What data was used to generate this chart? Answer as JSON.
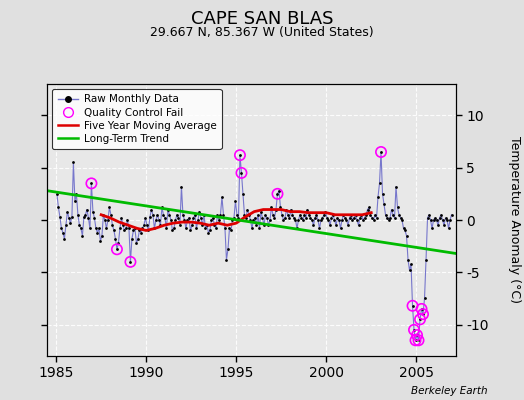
{
  "title": "CAPE SAN BLAS",
  "subtitle": "29.667 N, 85.367 W (United States)",
  "ylabel": "Temperature Anomaly (°C)",
  "credit": "Berkeley Earth",
  "xlim": [
    1984.5,
    2007.2
  ],
  "ylim": [
    -13,
    13
  ],
  "yticks": [
    -10,
    -5,
    0,
    5,
    10
  ],
  "xticks": [
    1985,
    1990,
    1995,
    2000,
    2005
  ],
  "bg_color": "#e0e0e0",
  "plot_bg_color": "#e8e8e8",
  "raw_line_color": "#7777cc",
  "dot_color": "#000000",
  "ma_color": "#dd0000",
  "trend_color": "#00bb00",
  "qc_color": "#ff00ff",
  "grid_color": "#ffffff",
  "raw_monthly": [
    [
      1985.042,
      2.5
    ],
    [
      1985.125,
      1.2
    ],
    [
      1985.208,
      0.3
    ],
    [
      1985.292,
      -0.8
    ],
    [
      1985.375,
      -1.2
    ],
    [
      1985.458,
      -1.8
    ],
    [
      1985.542,
      -0.5
    ],
    [
      1985.625,
      0.8
    ],
    [
      1985.708,
      0.2
    ],
    [
      1985.792,
      -0.3
    ],
    [
      1985.875,
      0.3
    ],
    [
      1985.958,
      5.5
    ],
    [
      1986.042,
      1.8
    ],
    [
      1986.125,
      2.5
    ],
    [
      1986.208,
      0.5
    ],
    [
      1986.292,
      -0.5
    ],
    [
      1986.375,
      -0.8
    ],
    [
      1986.458,
      -1.5
    ],
    [
      1986.542,
      0.3
    ],
    [
      1986.625,
      0.5
    ],
    [
      1986.708,
      1.0
    ],
    [
      1986.792,
      0.2
    ],
    [
      1986.875,
      -0.8
    ],
    [
      1986.958,
      3.5
    ],
    [
      1987.042,
      0.8
    ],
    [
      1987.125,
      0.2
    ],
    [
      1987.208,
      -0.8
    ],
    [
      1987.292,
      -1.2
    ],
    [
      1987.375,
      -0.8
    ],
    [
      1987.458,
      -2.0
    ],
    [
      1987.542,
      -1.5
    ],
    [
      1987.625,
      0.5
    ],
    [
      1987.708,
      0.0
    ],
    [
      1987.792,
      -0.8
    ],
    [
      1987.875,
      0.0
    ],
    [
      1987.958,
      1.2
    ],
    [
      1988.042,
      0.5
    ],
    [
      1988.125,
      -0.5
    ],
    [
      1988.208,
      -1.0
    ],
    [
      1988.292,
      -1.8
    ],
    [
      1988.375,
      -2.8
    ],
    [
      1988.458,
      -2.2
    ],
    [
      1988.542,
      -0.8
    ],
    [
      1988.625,
      0.2
    ],
    [
      1988.708,
      -0.5
    ],
    [
      1988.792,
      -1.0
    ],
    [
      1988.875,
      -0.8
    ],
    [
      1988.958,
      0.0
    ],
    [
      1989.042,
      -0.8
    ],
    [
      1989.125,
      -4.0
    ],
    [
      1989.208,
      -1.8
    ],
    [
      1989.292,
      -1.0
    ],
    [
      1989.375,
      -0.8
    ],
    [
      1989.458,
      -2.2
    ],
    [
      1989.542,
      -1.8
    ],
    [
      1989.625,
      -1.0
    ],
    [
      1989.708,
      -1.2
    ],
    [
      1989.792,
      -0.8
    ],
    [
      1989.875,
      -0.5
    ],
    [
      1989.958,
      0.2
    ],
    [
      1990.042,
      -0.5
    ],
    [
      1990.125,
      -1.0
    ],
    [
      1990.208,
      0.3
    ],
    [
      1990.292,
      1.0
    ],
    [
      1990.375,
      0.5
    ],
    [
      1990.458,
      -0.8
    ],
    [
      1990.542,
      0.0
    ],
    [
      1990.625,
      0.5
    ],
    [
      1990.708,
      0.0
    ],
    [
      1990.792,
      -0.5
    ],
    [
      1990.875,
      1.2
    ],
    [
      1990.958,
      0.5
    ],
    [
      1991.042,
      0.2
    ],
    [
      1991.125,
      -0.8
    ],
    [
      1991.208,
      1.0
    ],
    [
      1991.292,
      0.5
    ],
    [
      1991.375,
      0.0
    ],
    [
      1991.458,
      -1.0
    ],
    [
      1991.542,
      -0.8
    ],
    [
      1991.625,
      0.0
    ],
    [
      1991.708,
      0.5
    ],
    [
      1991.792,
      0.2
    ],
    [
      1991.875,
      -0.5
    ],
    [
      1991.958,
      3.2
    ],
    [
      1992.042,
      0.5
    ],
    [
      1992.125,
      0.0
    ],
    [
      1992.208,
      -0.8
    ],
    [
      1992.292,
      0.0
    ],
    [
      1992.375,
      0.2
    ],
    [
      1992.458,
      -1.0
    ],
    [
      1992.542,
      -0.5
    ],
    [
      1992.625,
      0.2
    ],
    [
      1992.708,
      0.5
    ],
    [
      1992.792,
      -0.8
    ],
    [
      1992.875,
      0.0
    ],
    [
      1992.958,
      0.8
    ],
    [
      1993.042,
      0.2
    ],
    [
      1993.125,
      -0.5
    ],
    [
      1993.208,
      0.5
    ],
    [
      1993.292,
      -0.8
    ],
    [
      1993.375,
      -0.5
    ],
    [
      1993.458,
      -1.2
    ],
    [
      1993.542,
      -1.0
    ],
    [
      1993.625,
      0.0
    ],
    [
      1993.708,
      0.2
    ],
    [
      1993.792,
      -0.5
    ],
    [
      1993.875,
      -0.8
    ],
    [
      1993.958,
      0.5
    ],
    [
      1994.042,
      0.0
    ],
    [
      1994.125,
      0.5
    ],
    [
      1994.208,
      2.2
    ],
    [
      1994.292,
      0.5
    ],
    [
      1994.375,
      -0.8
    ],
    [
      1994.458,
      -3.8
    ],
    [
      1994.542,
      -2.8
    ],
    [
      1994.625,
      -0.8
    ],
    [
      1994.708,
      -1.0
    ],
    [
      1994.792,
      0.0
    ],
    [
      1994.875,
      0.2
    ],
    [
      1994.958,
      1.8
    ],
    [
      1995.042,
      0.5
    ],
    [
      1995.125,
      0.2
    ],
    [
      1995.208,
      6.2
    ],
    [
      1995.292,
      4.5
    ],
    [
      1995.375,
      2.5
    ],
    [
      1995.458,
      0.5
    ],
    [
      1995.542,
      0.2
    ],
    [
      1995.625,
      1.0
    ],
    [
      1995.708,
      0.5
    ],
    [
      1995.792,
      0.0
    ],
    [
      1995.875,
      -0.8
    ],
    [
      1995.958,
      0.0
    ],
    [
      1996.042,
      0.2
    ],
    [
      1996.125,
      -0.5
    ],
    [
      1996.208,
      0.5
    ],
    [
      1996.292,
      -0.8
    ],
    [
      1996.375,
      0.8
    ],
    [
      1996.458,
      0.2
    ],
    [
      1996.542,
      -0.5
    ],
    [
      1996.625,
      0.5
    ],
    [
      1996.708,
      0.2
    ],
    [
      1996.792,
      -0.5
    ],
    [
      1996.875,
      0.0
    ],
    [
      1996.958,
      1.2
    ],
    [
      1997.042,
      0.5
    ],
    [
      1997.125,
      0.2
    ],
    [
      1997.208,
      1.0
    ],
    [
      1997.292,
      2.5
    ],
    [
      1997.375,
      2.8
    ],
    [
      1997.458,
      1.2
    ],
    [
      1997.542,
      0.5
    ],
    [
      1997.625,
      0.0
    ],
    [
      1997.708,
      0.2
    ],
    [
      1997.792,
      1.0
    ],
    [
      1997.875,
      0.5
    ],
    [
      1997.958,
      0.2
    ],
    [
      1998.042,
      1.0
    ],
    [
      1998.125,
      0.5
    ],
    [
      1998.208,
      0.2
    ],
    [
      1998.292,
      0.0
    ],
    [
      1998.375,
      -0.8
    ],
    [
      1998.458,
      0.0
    ],
    [
      1998.542,
      0.5
    ],
    [
      1998.625,
      0.2
    ],
    [
      1998.708,
      0.0
    ],
    [
      1998.792,
      0.5
    ],
    [
      1998.875,
      0.2
    ],
    [
      1998.958,
      1.0
    ],
    [
      1999.042,
      0.5
    ],
    [
      1999.125,
      0.2
    ],
    [
      1999.208,
      0.0
    ],
    [
      1999.292,
      -0.5
    ],
    [
      1999.375,
      0.2
    ],
    [
      1999.458,
      0.5
    ],
    [
      1999.542,
      0.0
    ],
    [
      1999.625,
      -0.8
    ],
    [
      1999.708,
      0.0
    ],
    [
      1999.792,
      0.2
    ],
    [
      1999.875,
      0.5
    ],
    [
      1999.958,
      0.8
    ],
    [
      2000.042,
      0.2
    ],
    [
      2000.125,
      0.0
    ],
    [
      2000.208,
      -0.5
    ],
    [
      2000.292,
      0.2
    ],
    [
      2000.375,
      0.5
    ],
    [
      2000.458,
      0.0
    ],
    [
      2000.542,
      -0.5
    ],
    [
      2000.625,
      0.2
    ],
    [
      2000.708,
      0.0
    ],
    [
      2000.792,
      -0.8
    ],
    [
      2000.875,
      0.0
    ],
    [
      2000.958,
      0.5
    ],
    [
      2001.042,
      0.2
    ],
    [
      2001.125,
      0.0
    ],
    [
      2001.208,
      -0.5
    ],
    [
      2001.292,
      0.2
    ],
    [
      2001.375,
      0.5
    ],
    [
      2001.458,
      0.0
    ],
    [
      2001.542,
      0.2
    ],
    [
      2001.625,
      0.5
    ],
    [
      2001.708,
      0.0
    ],
    [
      2001.792,
      -0.5
    ],
    [
      2001.875,
      0.2
    ],
    [
      2001.958,
      0.5
    ],
    [
      2002.042,
      0.0
    ],
    [
      2002.125,
      0.2
    ],
    [
      2002.208,
      0.5
    ],
    [
      2002.292,
      1.0
    ],
    [
      2002.375,
      1.2
    ],
    [
      2002.458,
      0.5
    ],
    [
      2002.542,
      0.2
    ],
    [
      2002.625,
      0.0
    ],
    [
      2002.708,
      0.5
    ],
    [
      2002.792,
      0.2
    ],
    [
      2002.875,
      2.2
    ],
    [
      2002.958,
      3.5
    ],
    [
      2003.042,
      6.5
    ],
    [
      2003.125,
      2.5
    ],
    [
      2003.208,
      1.5
    ],
    [
      2003.292,
      0.5
    ],
    [
      2003.375,
      0.2
    ],
    [
      2003.458,
      0.0
    ],
    [
      2003.542,
      0.2
    ],
    [
      2003.625,
      1.0
    ],
    [
      2003.708,
      0.5
    ],
    [
      2003.792,
      0.2
    ],
    [
      2003.875,
      3.2
    ],
    [
      2003.958,
      1.2
    ],
    [
      2004.042,
      0.5
    ],
    [
      2004.125,
      0.2
    ],
    [
      2004.208,
      0.0
    ],
    [
      2004.292,
      -0.8
    ],
    [
      2004.375,
      -1.0
    ],
    [
      2004.458,
      -1.5
    ],
    [
      2004.542,
      -3.8
    ],
    [
      2004.625,
      -4.8
    ],
    [
      2004.708,
      -4.2
    ],
    [
      2004.792,
      -8.2
    ],
    [
      2004.875,
      -10.5
    ],
    [
      2004.958,
      -11.5
    ],
    [
      2005.042,
      -11.0
    ],
    [
      2005.125,
      -11.5
    ],
    [
      2005.208,
      -9.5
    ],
    [
      2005.292,
      -8.5
    ],
    [
      2005.375,
      -9.0
    ],
    [
      2005.458,
      -7.5
    ],
    [
      2005.542,
      -3.8
    ],
    [
      2005.625,
      0.2
    ],
    [
      2005.708,
      0.5
    ],
    [
      2005.792,
      0.0
    ],
    [
      2005.875,
      -0.8
    ],
    [
      2005.958,
      0.0
    ],
    [
      2006.042,
      0.2
    ],
    [
      2006.125,
      0.0
    ],
    [
      2006.208,
      -0.5
    ],
    [
      2006.292,
      0.2
    ],
    [
      2006.375,
      0.5
    ],
    [
      2006.458,
      0.0
    ],
    [
      2006.542,
      -0.5
    ],
    [
      2006.625,
      0.2
    ],
    [
      2006.708,
      0.0
    ],
    [
      2006.792,
      -0.8
    ],
    [
      2006.875,
      0.0
    ],
    [
      2006.958,
      0.5
    ]
  ],
  "qc_fail": [
    [
      1986.958,
      3.5
    ],
    [
      1988.375,
      -2.8
    ],
    [
      1989.125,
      -4.0
    ],
    [
      1995.208,
      6.2
    ],
    [
      1995.292,
      4.5
    ],
    [
      1997.292,
      2.5
    ],
    [
      2003.042,
      6.5
    ],
    [
      2004.792,
      -8.2
    ],
    [
      2004.875,
      -10.5
    ],
    [
      2004.958,
      -11.5
    ],
    [
      2005.042,
      -11.0
    ],
    [
      2005.125,
      -11.5
    ],
    [
      2005.208,
      -9.5
    ],
    [
      2005.292,
      -8.5
    ],
    [
      2005.375,
      -9.0
    ]
  ],
  "moving_avg": [
    [
      1987.5,
      0.5
    ],
    [
      1988.0,
      0.2
    ],
    [
      1988.5,
      -0.2
    ],
    [
      1989.0,
      -0.5
    ],
    [
      1989.5,
      -0.8
    ],
    [
      1990.0,
      -1.0
    ],
    [
      1990.5,
      -0.8
    ],
    [
      1991.0,
      -0.5
    ],
    [
      1991.5,
      -0.3
    ],
    [
      1992.0,
      -0.2
    ],
    [
      1992.5,
      -0.2
    ],
    [
      1993.0,
      -0.3
    ],
    [
      1993.5,
      -0.5
    ],
    [
      1994.0,
      -0.3
    ],
    [
      1994.5,
      -0.5
    ],
    [
      1995.0,
      -0.3
    ],
    [
      1995.5,
      0.3
    ],
    [
      1996.0,
      0.8
    ],
    [
      1996.5,
      1.0
    ],
    [
      1997.0,
      1.0
    ],
    [
      1997.5,
      1.0
    ],
    [
      1998.0,
      0.8
    ],
    [
      1998.5,
      0.8
    ],
    [
      1999.0,
      0.7
    ],
    [
      1999.5,
      0.7
    ],
    [
      2000.0,
      0.7
    ],
    [
      2000.5,
      0.5
    ],
    [
      2001.0,
      0.5
    ],
    [
      2001.5,
      0.5
    ],
    [
      2002.0,
      0.5
    ],
    [
      2002.5,
      0.7
    ]
  ],
  "trend_line": [
    [
      1984.5,
      2.8
    ],
    [
      2007.2,
      -3.2
    ]
  ]
}
